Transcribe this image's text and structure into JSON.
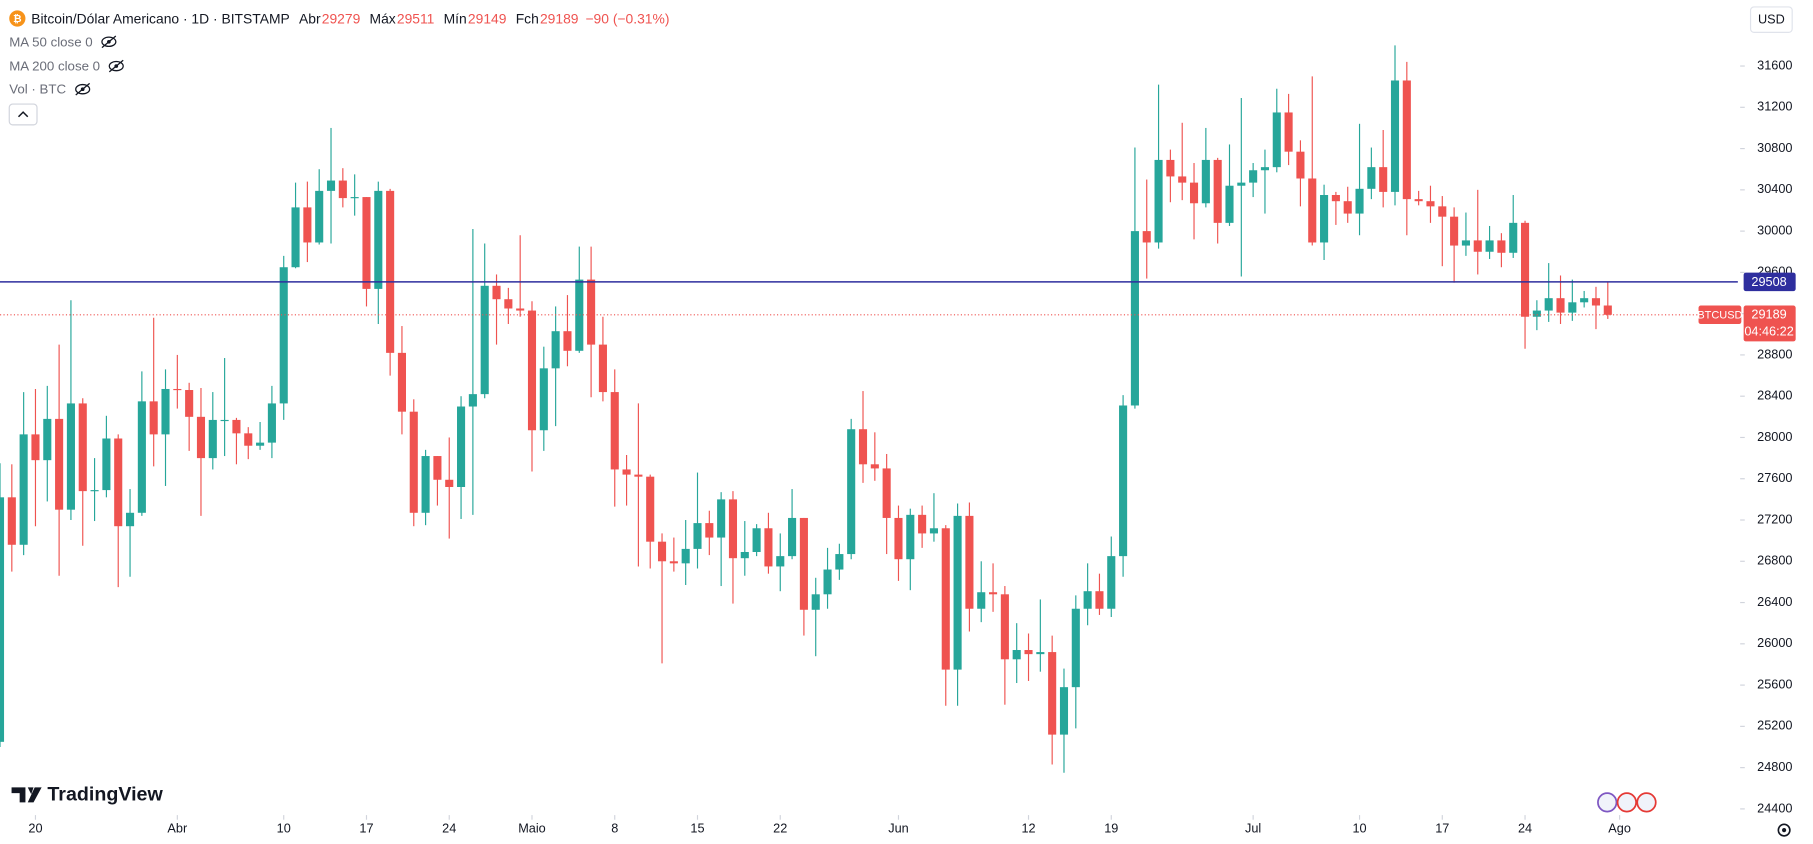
{
  "header": {
    "symbol_title": "Bitcoin/Dólar Americano · 1D · BITSTAMP",
    "ohlc_labels": [
      "Abr",
      "Máx",
      "Mín",
      "Fch"
    ],
    "change": "−90 (−0.31%)",
    "indicators": [
      "MA 50 close 0",
      "MA 200 close 0",
      "Vol · BTC"
    ],
    "currency": "USD",
    "watermark": "TradingView"
  },
  "chart_data": {
    "type": "candlestick",
    "up_color": "#26a69a",
    "down_color": "#ef5350",
    "x": [
      "03-17",
      "03-18",
      "03-19",
      "03-20",
      "03-21",
      "03-22",
      "03-23",
      "03-24",
      "03-25",
      "03-26",
      "03-27",
      "03-28",
      "03-29",
      "03-30",
      "03-31",
      "04-01",
      "04-02",
      "04-03",
      "04-04",
      "04-05",
      "04-06",
      "04-07",
      "04-08",
      "04-09",
      "04-10",
      "04-11",
      "04-12",
      "04-13",
      "04-14",
      "04-15",
      "04-16",
      "04-17",
      "04-18",
      "04-19",
      "04-20",
      "04-21",
      "04-22",
      "04-23",
      "04-24",
      "04-25",
      "04-26",
      "04-27",
      "04-28",
      "04-29",
      "04-30",
      "05-01",
      "05-02",
      "05-03",
      "05-04",
      "05-05",
      "05-06",
      "05-07",
      "05-08",
      "05-09",
      "05-10",
      "05-11",
      "05-12",
      "05-13",
      "05-14",
      "05-15",
      "05-16",
      "05-17",
      "05-18",
      "05-19",
      "05-20",
      "05-21",
      "05-22",
      "05-23",
      "05-24",
      "05-25",
      "05-26",
      "05-27",
      "05-28",
      "05-29",
      "05-30",
      "05-31",
      "06-01",
      "06-02",
      "06-03",
      "06-04",
      "06-05",
      "06-06",
      "06-07",
      "06-08",
      "06-09",
      "06-10",
      "06-11",
      "06-12",
      "06-13",
      "06-14",
      "06-15",
      "06-16",
      "06-17",
      "06-18",
      "06-19",
      "06-20",
      "06-21",
      "06-22",
      "06-23",
      "06-24",
      "06-25",
      "06-26",
      "06-27",
      "06-28",
      "06-29",
      "06-30",
      "07-01",
      "07-02",
      "07-03",
      "07-04",
      "07-05",
      "07-06",
      "07-07",
      "07-08",
      "07-09",
      "07-10",
      "07-11",
      "07-12",
      "07-13",
      "07-14",
      "07-15",
      "07-16",
      "07-17",
      "07-18",
      "07-19",
      "07-20",
      "07-21",
      "07-22",
      "07-23",
      "07-24",
      "07-25",
      "07-26",
      "07-27",
      "07-28",
      "07-29",
      "07-30",
      "07-31"
    ],
    "open": [
      25050,
      27420,
      26960,
      28030,
      27780,
      28180,
      27300,
      28330,
      27480,
      27490,
      27990,
      27140,
      27270,
      28350,
      28030,
      28470,
      28460,
      28200,
      27800,
      28170,
      28170,
      28040,
      27920,
      27950,
      28330,
      29650,
      30230,
      29890,
      30390,
      30490,
      30320,
      30330,
      29440,
      30390,
      28820,
      28250,
      27270,
      27820,
      27590,
      27520,
      28300,
      28420,
      29470,
      29340,
      29250,
      29230,
      28070,
      28670,
      29030,
      28840,
      29530,
      28900,
      28440,
      27690,
      27640,
      27620,
      26990,
      26800,
      26780,
      26920,
      27170,
      27030,
      27400,
      26830,
      26890,
      27120,
      26750,
      26850,
      27220,
      26330,
      26480,
      26720,
      26870,
      28080,
      27740,
      27700,
      27220,
      26820,
      27250,
      27070,
      27120,
      25750,
      27240,
      26340,
      26500,
      26480,
      25850,
      25940,
      25900,
      25920,
      25120,
      25580,
      26340,
      26510,
      26340,
      26850,
      28310,
      30000,
      29890,
      30690,
      30530,
      30470,
      30270,
      30690,
      30080,
      30440,
      30470,
      30590,
      30620,
      31150,
      30770,
      30510,
      29890,
      30350,
      30290,
      30170,
      30410,
      30620,
      30380,
      31460,
      30310,
      30290,
      30240,
      30140,
      29860,
      29910,
      29800,
      29910,
      29790,
      30080,
      29170,
      29230,
      29350,
      29210,
      29310,
      29350,
      29279
    ],
    "high": [
      27750,
      27740,
      28440,
      28470,
      28500,
      28900,
      29330,
      28380,
      27800,
      28210,
      28030,
      27500,
      28640,
      29160,
      28660,
      28800,
      28530,
      28480,
      28440,
      28770,
      28190,
      28100,
      28150,
      28500,
      29760,
      30470,
      30480,
      30600,
      31000,
      30610,
      30550,
      30330,
      30480,
      30410,
      29080,
      28370,
      27880,
      27820,
      28000,
      28400,
      30020,
      29880,
      29580,
      29450,
      29960,
      29320,
      28880,
      29270,
      29380,
      29850,
      29850,
      29170,
      28660,
      27830,
      28330,
      27640,
      27070,
      27030,
      27200,
      27660,
      27290,
      27470,
      27480,
      27190,
      27160,
      27270,
      27070,
      27500,
      27220,
      26640,
      26930,
      26970,
      28180,
      28450,
      28050,
      27840,
      27340,
      27310,
      27340,
      27460,
      27150,
      27360,
      27370,
      26800,
      26780,
      26560,
      26200,
      26100,
      26430,
      26080,
      25760,
      26470,
      26780,
      26680,
      27040,
      28410,
      30810,
      30500,
      31420,
      30790,
      31050,
      30660,
      31000,
      30710,
      30840,
      31290,
      30660,
      30790,
      31380,
      31330,
      30880,
      31500,
      30450,
      30380,
      30430,
      31040,
      30810,
      30980,
      31800,
      31640,
      30390,
      30440,
      30340,
      30230,
      30180,
      30400,
      30050,
      29980,
      30350,
      30100,
      29330,
      29690,
      29570,
      29530,
      29420,
      29460,
      29511
    ],
    "low": [
      25000,
      26700,
      26860,
      27140,
      27380,
      26660,
      27200,
      26950,
      27190,
      27420,
      26550,
      26650,
      27240,
      27720,
      27530,
      28280,
      27870,
      27240,
      27690,
      27820,
      27740,
      27790,
      27880,
      27800,
      28170,
      29640,
      29700,
      29870,
      29880,
      30230,
      30150,
      29270,
      29100,
      28600,
      28030,
      27140,
      27150,
      27340,
      27020,
      27210,
      27250,
      28380,
      28900,
      29100,
      29170,
      27670,
      27870,
      28110,
      28690,
      28820,
      28390,
      28350,
      27330,
      27340,
      26750,
      26730,
      25810,
      26700,
      26570,
      26730,
      26860,
      26560,
      26390,
      26660,
      26850,
      26680,
      26510,
      26820,
      26080,
      25880,
      26340,
      26620,
      26820,
      27560,
      27580,
      26870,
      26610,
      26520,
      26930,
      26990,
      25400,
      25400,
      26120,
      26210,
      26310,
      25410,
      25620,
      25640,
      25730,
      24830,
      24750,
      25180,
      26180,
      26280,
      26260,
      26650,
      28280,
      29540,
      29830,
      30280,
      30300,
      29920,
      30230,
      29880,
      30050,
      29560,
      30330,
      30170,
      30570,
      30640,
      30240,
      29860,
      29720,
      30060,
      30080,
      29960,
      30310,
      30230,
      30250,
      29960,
      30250,
      30080,
      29660,
      29500,
      29760,
      29580,
      29730,
      29650,
      29740,
      28860,
      29040,
      29120,
      29100,
      29130,
      29260,
      29050,
      29149
    ],
    "close": [
      27420,
      26960,
      28030,
      27780,
      28180,
      27300,
      28330,
      27480,
      27490,
      27990,
      27140,
      27270,
      28350,
      28030,
      28470,
      28460,
      28200,
      27800,
      28170,
      28170,
      28040,
      27920,
      27950,
      28330,
      29650,
      30230,
      29890,
      30390,
      30490,
      30320,
      30330,
      29440,
      30390,
      28820,
      28250,
      27270,
      27820,
      27590,
      27520,
      28300,
      28420,
      29470,
      29340,
      29250,
      29230,
      28070,
      28670,
      29030,
      28840,
      29530,
      28900,
      28440,
      27690,
      27640,
      27620,
      26990,
      26800,
      26780,
      26920,
      27170,
      27030,
      27400,
      26830,
      26890,
      27120,
      26750,
      26850,
      27220,
      26330,
      26480,
      26720,
      26870,
      28080,
      27740,
      27700,
      27220,
      26820,
      27250,
      27070,
      27120,
      25750,
      27240,
      26340,
      26500,
      26480,
      25850,
      25940,
      25900,
      25920,
      25120,
      25580,
      26340,
      26510,
      26340,
      26850,
      28310,
      30000,
      29890,
      30690,
      30530,
      30470,
      30270,
      30690,
      30080,
      30440,
      30470,
      30590,
      30620,
      31150,
      30770,
      30510,
      29890,
      30350,
      30290,
      30170,
      30410,
      30620,
      30380,
      31460,
      30310,
      30290,
      30240,
      30140,
      29860,
      29910,
      29800,
      29910,
      29790,
      30080,
      29170,
      29230,
      29350,
      29210,
      29310,
      29350,
      29279,
      29189
    ],
    "xlim": [
      "03-17",
      "08-11"
    ],
    "xticks": [
      {
        "value": "03-20",
        "label": "20"
      },
      {
        "value": "04-01",
        "label": "Abr"
      },
      {
        "value": "04-10",
        "label": "10"
      },
      {
        "value": "04-17",
        "label": "17"
      },
      {
        "value": "04-24",
        "label": "24"
      },
      {
        "value": "05-01",
        "label": "Maio"
      },
      {
        "value": "05-08",
        "label": "8"
      },
      {
        "value": "05-15",
        "label": "15"
      },
      {
        "value": "05-22",
        "label": "22"
      },
      {
        "value": "06-01",
        "label": "Jun"
      },
      {
        "value": "06-12",
        "label": "12"
      },
      {
        "value": "06-19",
        "label": "19"
      },
      {
        "value": "07-01",
        "label": "Jul"
      },
      {
        "value": "07-10",
        "label": "10"
      },
      {
        "value": "07-17",
        "label": "17"
      },
      {
        "value": "07-24",
        "label": "24"
      },
      {
        "value": "08-01",
        "label": "Ago"
      }
    ],
    "ylim": [
      24340,
      32240
    ],
    "yticks": [
      24400,
      24800,
      25200,
      25600,
      26000,
      26400,
      26800,
      27200,
      27600,
      28000,
      28400,
      28800,
      29200,
      29600,
      30000,
      30400,
      30800,
      31200,
      31600
    ],
    "grid": false,
    "hline": {
      "value": 29508,
      "color": "#2e2e9e"
    },
    "last_price": {
      "symbol": "BTCUSD",
      "countdown": "04:46:22"
    }
  }
}
